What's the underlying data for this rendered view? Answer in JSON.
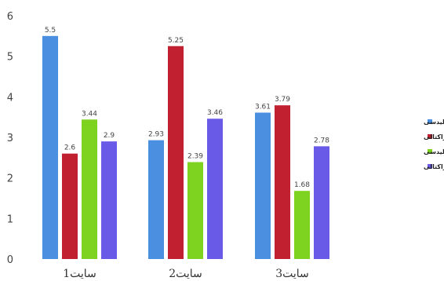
{
  "chart_data": {
    "type": "bar",
    "title": "",
    "xlabel": "",
    "ylabel": "",
    "ylim": [
      0,
      6
    ],
    "yticks": [
      0,
      1,
      2,
      3,
      4,
      5,
      6
    ],
    "grid": false,
    "legend_position": "right",
    "categories": [
      "سایت1",
      "سایت2",
      "سایت3"
    ],
    "series": [
      {
        "name": "تابع گاوسی - هندسه اقلیدسی",
        "color": "#4a8fe0",
        "values": [
          5.5,
          2.93,
          3.61
        ]
      },
      {
        "name": "تابع گاوسی - هندسه فراکتالی",
        "color": "#c0202f",
        "values": [
          2.6,
          5.25,
          3.79
        ]
      },
      {
        "name": "تابع نمایی - هندسه اقلیدسی",
        "color": "#7ed321",
        "values": [
          3.44,
          2.39,
          1.68
        ]
      },
      {
        "name": "تابع نمایی - هندسه فراکتالی",
        "color": "#6a5ae8",
        "values": [
          2.9,
          3.46,
          2.78
        ]
      }
    ]
  }
}
